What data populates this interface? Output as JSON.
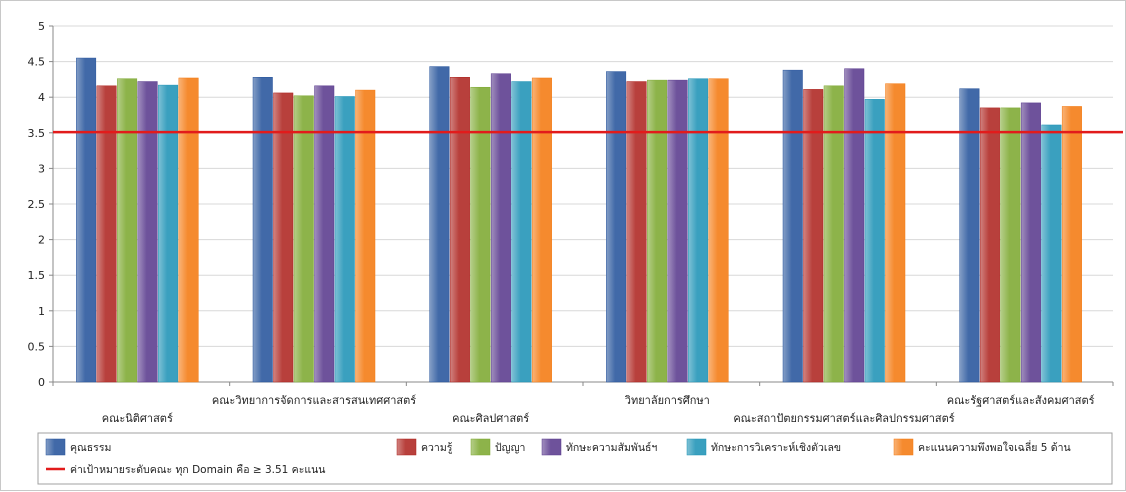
{
  "chart_data": {
    "type": "bar",
    "ylim": [
      0,
      5
    ],
    "yticks": [
      "0",
      "0.5",
      "1",
      "1.5",
      "2",
      "2.5",
      "3",
      "3.5",
      "4",
      "4.5",
      "5"
    ],
    "grid": true,
    "legend_position": "bottom",
    "categories": [
      "คณะนิติศาสตร์",
      "คณะวิทยาการจัดการและสารสนเทศศาสตร์",
      "คณะศิลปศาสตร์",
      "วิทยาลัยการศึกษา",
      "คณะสถาปัตยกรรมศาสตร์และศิลปกรรมศาสตร์",
      "คณะรัฐศาสตร์และสังคมศาสตร์"
    ],
    "series": [
      {
        "name": "คุณธรรม",
        "color": "#4169a8",
        "values": [
          4.55,
          4.28,
          4.43,
          4.36,
          4.38,
          4.12
        ]
      },
      {
        "name": "ความรู้",
        "color": "#b8403c",
        "values": [
          4.16,
          4.06,
          4.28,
          4.22,
          4.11,
          3.85
        ]
      },
      {
        "name": "ปัญญา",
        "color": "#8db34a",
        "values": [
          4.26,
          4.02,
          4.14,
          4.24,
          4.16,
          3.85
        ]
      },
      {
        "name": "ทักษะความสัมพันธ์ฯ",
        "color": "#6e529b",
        "values": [
          4.22,
          4.16,
          4.33,
          4.24,
          4.4,
          3.92
        ]
      },
      {
        "name": "ทักษะการวิเคราะห์เชิงตัวเลข",
        "color": "#3aa0bf",
        "values": [
          4.17,
          4.01,
          4.22,
          4.26,
          3.97,
          3.61
        ]
      },
      {
        "name": "คะแนนความพึงพอใจเฉลี่ย 5 ด้าน",
        "color": "#f58a2e",
        "values": [
          4.27,
          4.1,
          4.27,
          4.26,
          4.19,
          3.87
        ]
      }
    ],
    "target_line": {
      "name": "ค่าเป้าหมายระดับคณะ ทุก Domain คือ  ≥ 3.51 คะแนน",
      "value": 3.51,
      "color": "#e21b1b"
    }
  }
}
